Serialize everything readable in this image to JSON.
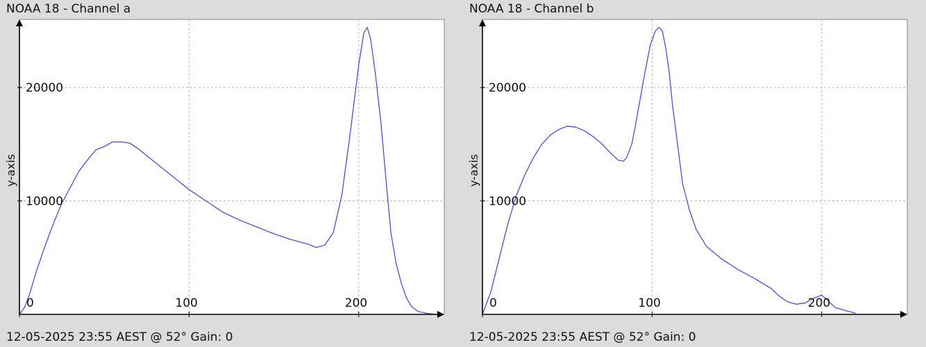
{
  "colors": {
    "background": "#dcdcdc",
    "plot_area": "#ffffff",
    "series_line": "#4a4fd0",
    "grid": "#b4b4b4",
    "axis": "#000000"
  },
  "chart_data": [
    {
      "type": "line",
      "title": "NOAA 18 - Channel a",
      "footer": "12-05-2025 23:55 AEST @ 52° Gain: 0",
      "xlabel": "",
      "ylabel": "y-axis",
      "xlim": [
        0,
        250
      ],
      "ylim": [
        0,
        26000
      ],
      "xticks": [
        0,
        100,
        200
      ],
      "yticks": [
        10000,
        20000
      ],
      "grid": true,
      "series": [
        {
          "points": [
            [
              0,
              0
            ],
            [
              3,
              600
            ],
            [
              6,
              1800
            ],
            [
              10,
              3800
            ],
            [
              15,
              6000
            ],
            [
              20,
              8000
            ],
            [
              25,
              9800
            ],
            [
              30,
              11200
            ],
            [
              35,
              12600
            ],
            [
              40,
              13600
            ],
            [
              45,
              14500
            ],
            [
              50,
              14800
            ],
            [
              55,
              15200
            ],
            [
              60,
              15200
            ],
            [
              65,
              15100
            ],
            [
              70,
              14600
            ],
            [
              75,
              14000
            ],
            [
              80,
              13400
            ],
            [
              90,
              12200
            ],
            [
              100,
              11000
            ],
            [
              110,
              10000
            ],
            [
              120,
              9000
            ],
            [
              130,
              8300
            ],
            [
              140,
              7700
            ],
            [
              150,
              7100
            ],
            [
              160,
              6600
            ],
            [
              170,
              6200
            ],
            [
              175,
              5900
            ],
            [
              180,
              6100
            ],
            [
              185,
              7200
            ],
            [
              190,
              10500
            ],
            [
              195,
              16000
            ],
            [
              200,
              22000
            ],
            [
              203,
              24800
            ],
            [
              205,
              25300
            ],
            [
              207,
              24300
            ],
            [
              210,
              21000
            ],
            [
              213,
              17000
            ],
            [
              216,
              12000
            ],
            [
              219,
              7200
            ],
            [
              222,
              4500
            ],
            [
              225,
              2800
            ],
            [
              228,
              1500
            ],
            [
              231,
              700
            ],
            [
              235,
              250
            ],
            [
              240,
              100
            ],
            [
              245,
              0
            ]
          ]
        }
      ]
    },
    {
      "type": "line",
      "title": "NOAA 18 - Channel b",
      "footer": "12-05-2025 23:55 AEST @ 52° Gain: 0",
      "xlabel": "",
      "ylabel": "y-axis",
      "xlim": [
        0,
        250
      ],
      "ylim": [
        0,
        26000
      ],
      "xticks": [
        0,
        100,
        200
      ],
      "yticks": [
        10000,
        20000
      ],
      "grid": true,
      "series": [
        {
          "points": [
            [
              0,
              0
            ],
            [
              5,
              2000
            ],
            [
              10,
              5000
            ],
            [
              15,
              8000
            ],
            [
              20,
              10500
            ],
            [
              25,
              12300
            ],
            [
              30,
              13800
            ],
            [
              35,
              15000
            ],
            [
              40,
              15800
            ],
            [
              45,
              16300
            ],
            [
              50,
              16600
            ],
            [
              55,
              16500
            ],
            [
              60,
              16200
            ],
            [
              65,
              15700
            ],
            [
              70,
              15100
            ],
            [
              75,
              14300
            ],
            [
              80,
              13600
            ],
            [
              83,
              13500
            ],
            [
              85,
              13800
            ],
            [
              88,
              15000
            ],
            [
              90,
              16500
            ],
            [
              93,
              19000
            ],
            [
              96,
              21500
            ],
            [
              99,
              23800
            ],
            [
              102,
              25000
            ],
            [
              104,
              25300
            ],
            [
              106,
              25000
            ],
            [
              108,
              23500
            ],
            [
              110,
              21500
            ],
            [
              112,
              18500
            ],
            [
              115,
              15000
            ],
            [
              118,
              11500
            ],
            [
              122,
              9200
            ],
            [
              126,
              7500
            ],
            [
              132,
              6000
            ],
            [
              140,
              5000
            ],
            [
              150,
              4000
            ],
            [
              160,
              3200
            ],
            [
              170,
              2300
            ],
            [
              175,
              1600
            ],
            [
              180,
              1100
            ],
            [
              185,
              900
            ],
            [
              190,
              1000
            ],
            [
              195,
              1400
            ],
            [
              200,
              1700
            ],
            [
              203,
              1300
            ],
            [
              208,
              600
            ],
            [
              215,
              300
            ],
            [
              220,
              100
            ]
          ]
        }
      ]
    }
  ]
}
